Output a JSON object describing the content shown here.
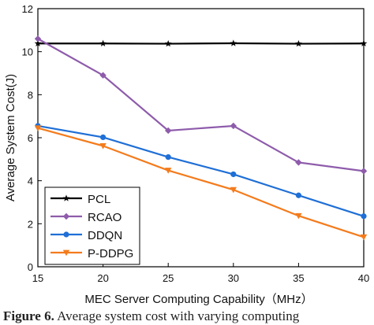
{
  "chart_data": {
    "type": "line",
    "xlabel": "MEC Server Computing Capability（MHz）",
    "ylabel": "Average System Cost(J)",
    "xlim": [
      15,
      40
    ],
    "ylim": [
      0,
      12
    ],
    "xticks": [
      15,
      20,
      25,
      30,
      35,
      40
    ],
    "yticks": [
      0,
      2,
      4,
      6,
      8,
      10,
      12
    ],
    "grid": false,
    "legend_position": "bottom-left",
    "x": [
      15,
      20,
      25,
      30,
      35,
      40
    ],
    "series": [
      {
        "name": "PCL",
        "marker": "star",
        "color": "#000000",
        "values": [
          10.38,
          10.38,
          10.37,
          10.39,
          10.37,
          10.38
        ]
      },
      {
        "name": "RCAO",
        "marker": "diamond",
        "color": "#8e5cab",
        "values": [
          10.6,
          8.9,
          6.33,
          6.55,
          4.85,
          4.45
        ]
      },
      {
        "name": "DDQN",
        "marker": "circle",
        "color": "#1f6fd6",
        "values": [
          6.55,
          6.02,
          5.1,
          4.3,
          3.32,
          2.35
        ]
      },
      {
        "name": "P-DDPG",
        "marker": "triangle-down",
        "color": "#f47b1c",
        "values": [
          6.45,
          5.62,
          4.48,
          3.58,
          2.37,
          1.38
        ]
      }
    ]
  },
  "caption": {
    "prefix": "Figure 6.",
    "text": "Average system cost with varying computing"
  }
}
